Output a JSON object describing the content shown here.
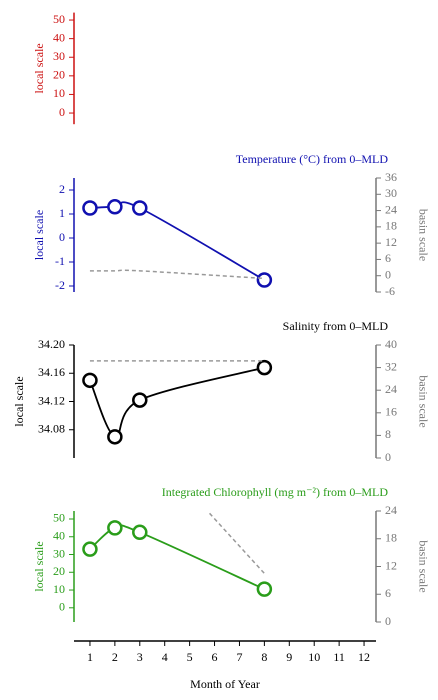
{
  "chart_data": [
    {
      "type": "line",
      "color": "#cc1111",
      "ylabel": "local scale",
      "ylim": [
        -6,
        54
      ],
      "yticks": [
        0,
        10,
        20,
        30,
        40,
        50
      ],
      "xlim": [
        0.4,
        12.6
      ],
      "series": []
    },
    {
      "type": "line",
      "title": "Temperature (°C) from 0–MLD",
      "color": "#1010b0",
      "ylabel": "local scale",
      "y2label": "basin scale",
      "ylim": [
        -2.25,
        2.5
      ],
      "yticks": [
        -2,
        -1,
        0,
        1,
        2
      ],
      "y2lim": [
        -6,
        36
      ],
      "y2ticks": [
        -6,
        0,
        6,
        12,
        18,
        24,
        30,
        36
      ],
      "xlim": [
        0.4,
        12.6
      ],
      "series": [
        {
          "x": [
            1,
            2,
            3,
            8
          ],
          "values": [
            1.25,
            1.3,
            1.25,
            -1.75
          ],
          "color": "#1010b0"
        },
        {
          "x": [
            1,
            2,
            3,
            8
          ],
          "values": [
            1.8,
            1.8,
            1.8,
            -1
          ],
          "color": "#999999",
          "axis": "y2"
        }
      ]
    },
    {
      "type": "line",
      "title": "Salinity from 0–MLD",
      "color": "#000000",
      "ylabel": "local scale",
      "y2label": "basin scale",
      "ylim": [
        34.04,
        34.2
      ],
      "yticks": [
        34.08,
        34.12,
        34.16,
        {
          "value": 34.2,
          "label": "34.20"
        }
      ],
      "y2lim": [
        0,
        40
      ],
      "y2ticks": [
        0,
        8,
        16,
        24,
        32,
        40
      ],
      "xlim": [
        0.4,
        12.6
      ],
      "series": [
        {
          "x": [
            1,
            2,
            3,
            8
          ],
          "values": [
            34.15,
            34.07,
            34.122,
            34.168
          ],
          "color": "#000000"
        },
        {
          "x": [
            1,
            2,
            3,
            8
          ],
          "values": [
            34.4,
            34.4,
            34.4,
            34.4
          ],
          "color": "#999999",
          "axis": "y2"
        }
      ]
    },
    {
      "type": "line",
      "title": "Integrated Chlorophyll (mg m⁻²) from 0–MLD",
      "color": "#2a9d1a",
      "ylabel": "local scale",
      "y2label": "basin scale",
      "xlabel": "Month of Year",
      "ylim": [
        -8,
        54.5
      ],
      "yticks": [
        0,
        10,
        20,
        30,
        40,
        50
      ],
      "y2lim": [
        0,
        24
      ],
      "y2ticks": [
        0,
        6,
        12,
        18,
        24
      ],
      "xlim": [
        0.4,
        12.6
      ],
      "xticks": [
        1,
        2,
        3,
        4,
        5,
        6,
        7,
        8,
        9,
        10,
        11,
        12
      ],
      "series": [
        {
          "x": [
            1,
            2,
            3,
            8
          ],
          "values": [
            33,
            45,
            42.5,
            10.5
          ],
          "color": "#2a9d1a"
        },
        {
          "x": [
            5.8,
            8
          ],
          "values": [
            23.5,
            10.5
          ],
          "color": "#999999",
          "axis": "y2"
        }
      ]
    }
  ]
}
